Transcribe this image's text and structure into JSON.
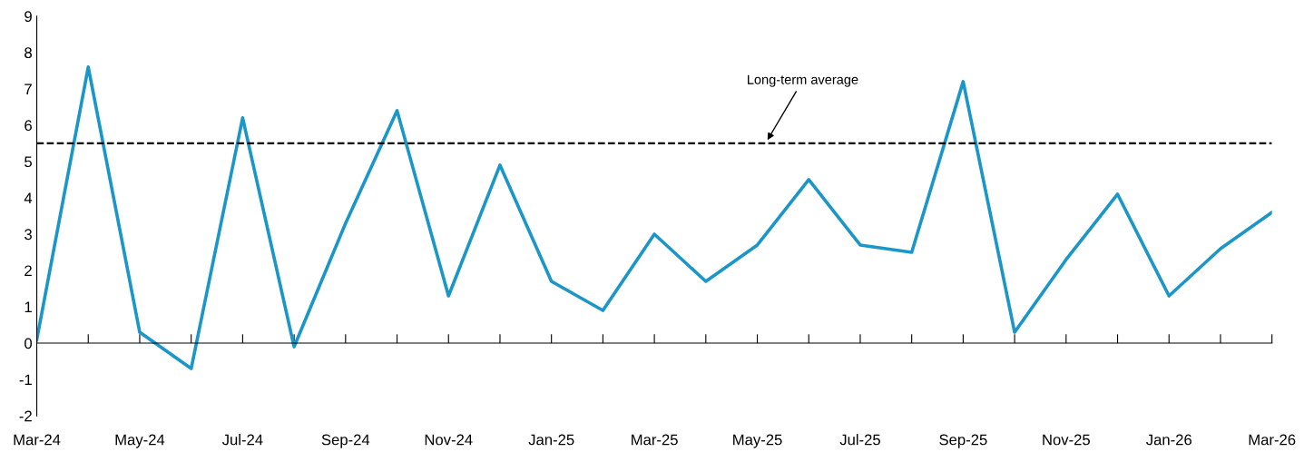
{
  "chart_data": {
    "type": "line",
    "categories": [
      "Mar-24",
      null,
      "May-24",
      null,
      "Jul-24",
      null,
      "Sep-24",
      null,
      "Nov-24",
      null,
      "Jan-25",
      null,
      "Mar-25",
      null,
      "May-25",
      null,
      "Jul-25",
      null,
      "Sep-25",
      null,
      "Nov-25",
      null,
      "Jan-26",
      null,
      "Mar-26"
    ],
    "series": [
      {
        "color": "#1a96c8",
        "values": [
          0.1,
          7.6,
          0.3,
          -0.7,
          6.2,
          -0.1,
          3.3,
          6.4,
          1.3,
          4.9,
          1.7,
          0.9,
          3.0,
          1.7,
          2.7,
          4.5,
          2.7,
          2.5,
          7.2,
          0.3,
          2.3,
          4.1,
          1.3,
          2.6,
          3.6
        ]
      }
    ],
    "ylim": [
      -2,
      9
    ],
    "yticks": [
      -2,
      -1,
      0,
      1,
      2,
      3,
      4,
      5,
      6,
      7,
      8,
      9
    ],
    "ref_lines": [
      {
        "axis": "y",
        "value": 5.5,
        "color": "#000000",
        "line_style": "dashed"
      }
    ],
    "annotations": [
      "Long-term average"
    ],
    "legend": false,
    "marker": "none",
    "line_style": "solid"
  }
}
